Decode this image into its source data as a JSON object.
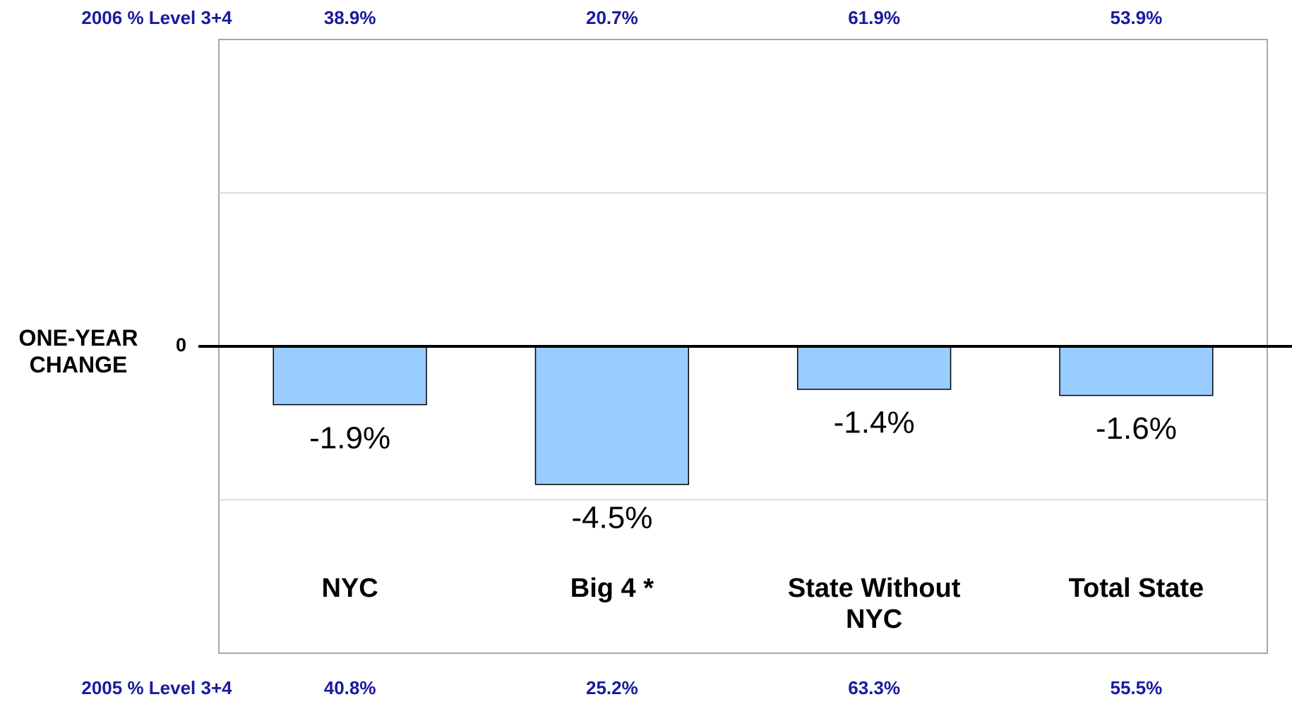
{
  "chart_data": {
    "type": "bar",
    "y_axis_label": "ONE-YEAR CHANGE",
    "categories": [
      "NYC",
      "Big 4 *",
      "State Without NYC",
      "Total State"
    ],
    "values": [
      -1.9,
      -4.5,
      -1.4,
      -1.6
    ],
    "value_labels": [
      "-1.9%",
      "-4.5%",
      "-1.4%",
      "-1.6%"
    ],
    "color": "#99ccff",
    "ylim": [
      -10,
      10
    ],
    "yticks": [
      0
    ],
    "ygrid": [
      -5,
      5
    ],
    "top_row": {
      "label": "2006 % Level 3+4",
      "labels": [
        "38.9%",
        "20.7%",
        "61.9%",
        "53.9%"
      ]
    },
    "bottom_row": {
      "label": "2005 % Level 3+4",
      "labels": [
        "40.8%",
        "25.2%",
        "63.3%",
        "55.5%"
      ]
    }
  }
}
